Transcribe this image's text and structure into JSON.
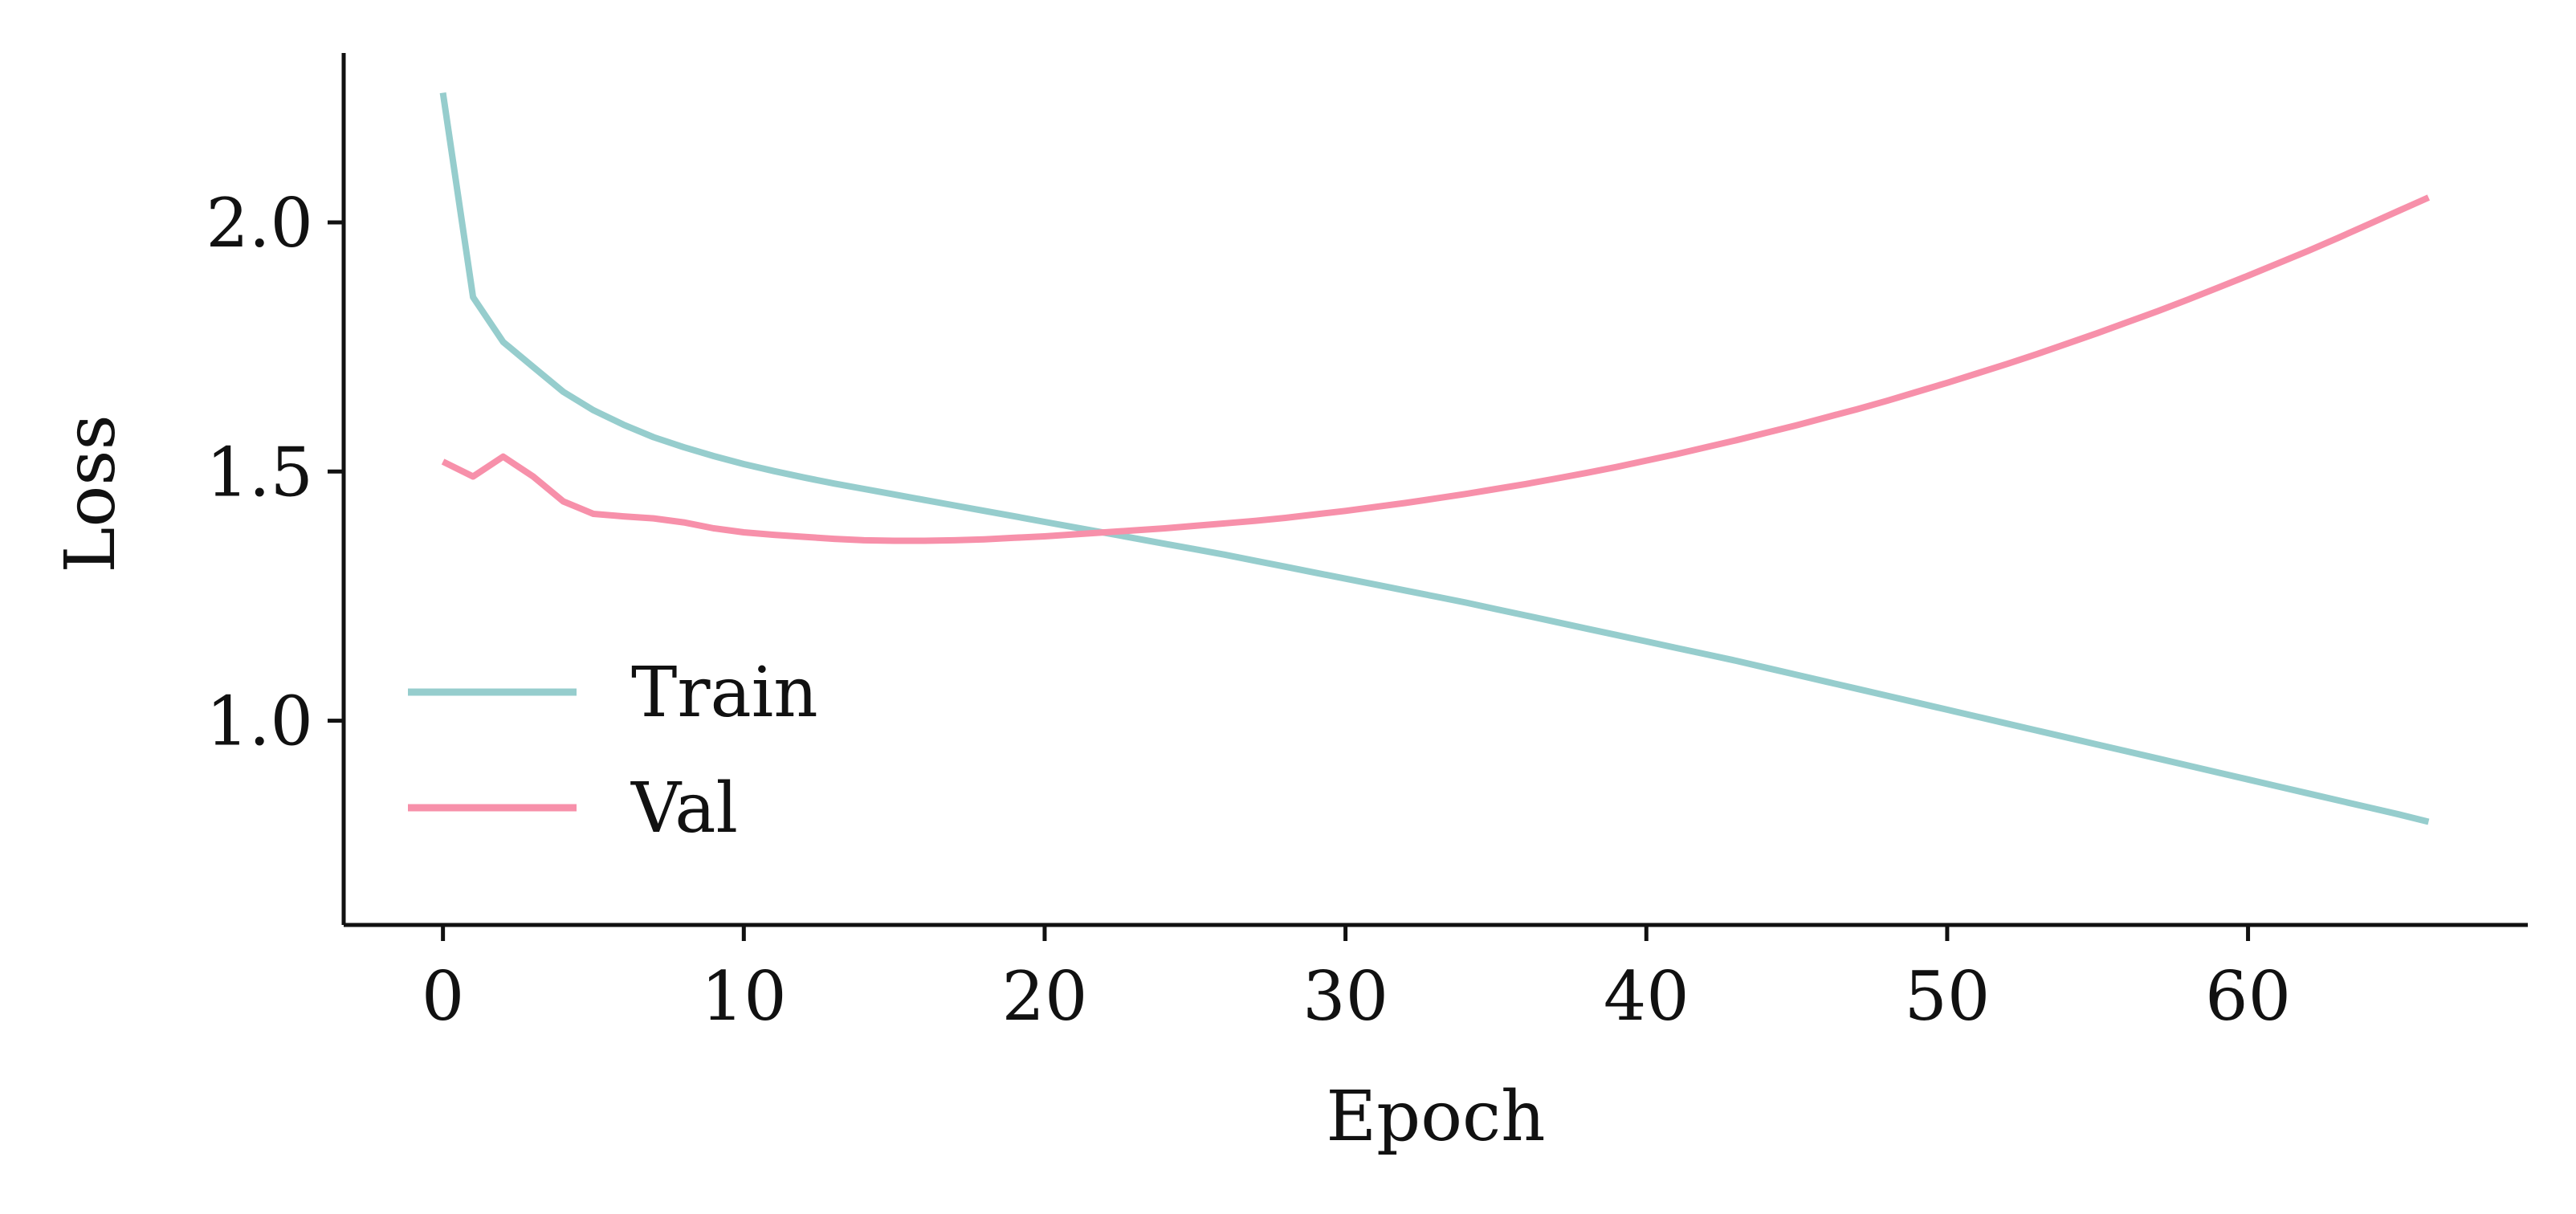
{
  "chart_data": {
    "type": "line",
    "title": "",
    "xlabel": "Epoch",
    "ylabel": "Loss",
    "xlim": [
      -3.3,
      69.3
    ],
    "ylim": [
      0.59,
      2.34
    ],
    "xticks": [
      0,
      10,
      20,
      30,
      40,
      50,
      60
    ],
    "xtick_labels": [
      "0",
      "10",
      "20",
      "30",
      "40",
      "50",
      "60"
    ],
    "yticks": [
      1.0,
      1.5,
      2.0
    ],
    "ytick_labels": [
      "1.0",
      "1.5",
      "2.0"
    ],
    "grid": false,
    "legend_position": "lower-left",
    "x": [
      0,
      1,
      2,
      3,
      4,
      5,
      6,
      7,
      8,
      9,
      10,
      11,
      12,
      13,
      14,
      15,
      16,
      17,
      18,
      19,
      20,
      21,
      22,
      23,
      24,
      25,
      26,
      27,
      28,
      29,
      30,
      31,
      32,
      33,
      34,
      35,
      36,
      37,
      38,
      39,
      40,
      41,
      42,
      43,
      44,
      45,
      46,
      47,
      48,
      49,
      50,
      51,
      52,
      53,
      54,
      55,
      56,
      57,
      58,
      59,
      60,
      61,
      62,
      63,
      64,
      65,
      66
    ],
    "series": [
      {
        "name": "Train",
        "color": "#96cdcd",
        "values": [
          2.26,
          1.85,
          1.76,
          1.71,
          1.66,
          1.623,
          1.594,
          1.569,
          1.549,
          1.531,
          1.515,
          1.501,
          1.488,
          1.476,
          1.465,
          1.454,
          1.443,
          1.432,
          1.421,
          1.41,
          1.399,
          1.388,
          1.377,
          1.366,
          1.355,
          1.344,
          1.333,
          1.321,
          1.309,
          1.297,
          1.285,
          1.273,
          1.261,
          1.249,
          1.237,
          1.224,
          1.211,
          1.198,
          1.185,
          1.172,
          1.159,
          1.146,
          1.133,
          1.12,
          1.106,
          1.092,
          1.078,
          1.064,
          1.05,
          1.036,
          1.022,
          1.008,
          0.994,
          0.98,
          0.966,
          0.952,
          0.938,
          0.924,
          0.91,
          0.896,
          0.882,
          0.868,
          0.854,
          0.84,
          0.826,
          0.812,
          0.797
        ]
      },
      {
        "name": "Val",
        "color": "#f790aa",
        "values": [
          1.52,
          1.49,
          1.53,
          1.49,
          1.44,
          1.415,
          1.41,
          1.406,
          1.398,
          1.386,
          1.378,
          1.373,
          1.369,
          1.365,
          1.362,
          1.361,
          1.361,
          1.362,
          1.364,
          1.367,
          1.37,
          1.374,
          1.378,
          1.382,
          1.386,
          1.391,
          1.396,
          1.401,
          1.407,
          1.414,
          1.421,
          1.429,
          1.437,
          1.446,
          1.455,
          1.465,
          1.475,
          1.486,
          1.497,
          1.509,
          1.522,
          1.535,
          1.549,
          1.563,
          1.578,
          1.593,
          1.609,
          1.625,
          1.642,
          1.66,
          1.678,
          1.697,
          1.716,
          1.736,
          1.757,
          1.778,
          1.8,
          1.822,
          1.845,
          1.869,
          1.893,
          1.918,
          1.943,
          1.969,
          1.996,
          2.023,
          2.05
        ]
      }
    ]
  }
}
